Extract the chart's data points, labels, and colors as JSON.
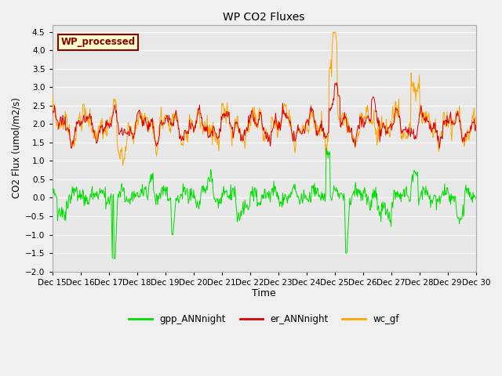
{
  "title": "WP CO2 Fluxes",
  "xlabel": "Time",
  "ylabel": "CO2 Flux (umol/m2/s)",
  "ylim": [
    -2.0,
    4.7
  ],
  "yticks": [
    -2.0,
    -1.5,
    -1.0,
    -0.5,
    0.0,
    0.5,
    1.0,
    1.5,
    2.0,
    2.5,
    3.0,
    3.5,
    4.0,
    4.5
  ],
  "plot_bg_color": "#e8e8e8",
  "fig_bg_color": "#f0f0f0",
  "grid_color": "#ffffff",
  "annotation_text": "WP_processed",
  "annotation_text_color": "#8b0000",
  "annotation_bg_color": "#ffffcc",
  "annotation_edge_color": "#8b0000",
  "line_colors": {
    "gpp": "#00dd00",
    "er": "#dd0000",
    "wc": "#ffa500"
  },
  "legend_labels": [
    "gpp_ANNnight",
    "er_ANNnight",
    "wc_gf"
  ],
  "n_points": 720,
  "x_start": 15.0,
  "x_end": 30.0,
  "xtick_positions": [
    15,
    16,
    17,
    18,
    19,
    20,
    21,
    22,
    23,
    24,
    25,
    26,
    27,
    28,
    29,
    30
  ],
  "xtick_labels": [
    "Dec 15",
    "Dec 16",
    "Dec 17",
    "Dec 18",
    "Dec 19",
    "Dec 20",
    "Dec 21",
    "Dec 22",
    "Dec 23",
    "Dec 24",
    "Dec 25",
    "Dec 26",
    "Dec 27",
    "Dec 28",
    "Dec 29",
    "Dec 30"
  ]
}
